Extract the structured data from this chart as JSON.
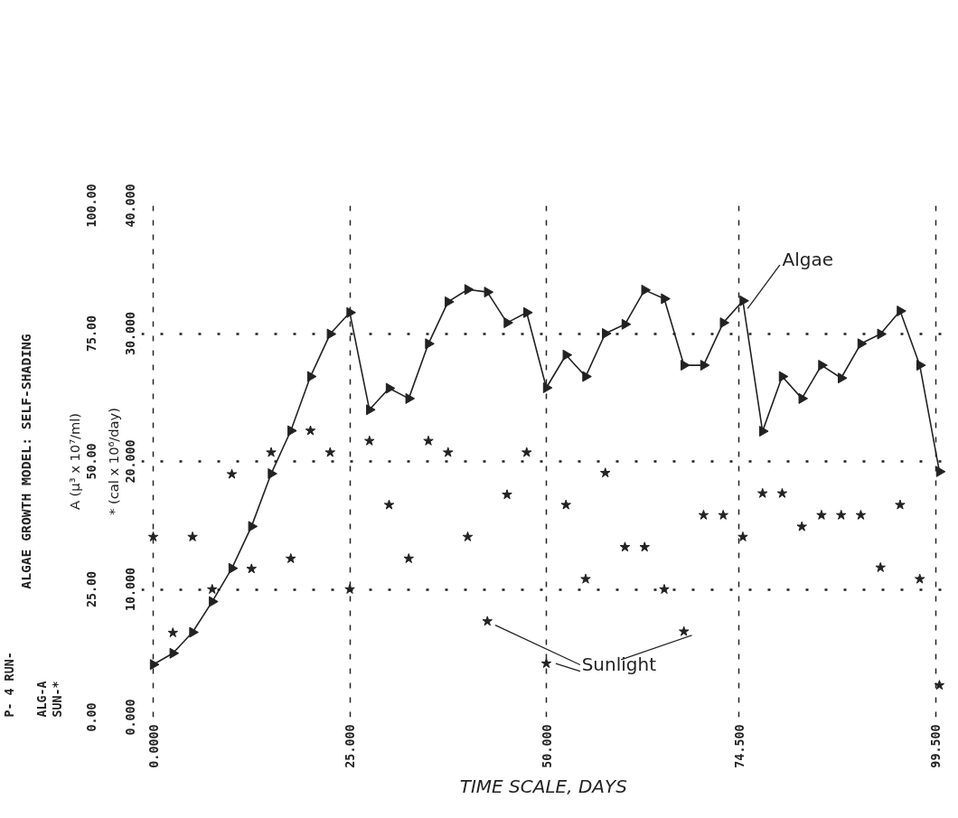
{
  "chart_data": {
    "type": "line",
    "title": "ALGAE GROWTH MODEL: SELF-SHADING",
    "xlabel": "TIME  SCALE, DAYS",
    "ylabel": "A (μ³ x 10⁷/ml)",
    "y2label": "* (cal x 10⁶/day)",
    "annotations": [
      "P- 4 RUN-",
      "ALG-A",
      "SUN-*"
    ],
    "x": [
      0,
      2.5,
      5,
      7.5,
      10,
      12.5,
      15,
      17.5,
      20,
      22.5,
      25,
      27.5,
      30,
      32.5,
      35,
      37.5,
      40,
      42.5,
      45,
      47.5,
      50,
      52.5,
      55,
      57.5,
      60,
      62.5,
      65,
      67.5,
      70,
      72.5,
      75,
      77.5,
      80,
      82.5,
      85,
      87.5,
      90,
      92.5,
      95,
      97.5,
      100
    ],
    "series": [
      {
        "name": "Algae",
        "marker": "triangle",
        "color": "#222222",
        "values": [
          10.3,
          12.5,
          16.6,
          22.6,
          29.1,
          37.3,
          47.6,
          56.0,
          66.6,
          74.9,
          79.1,
          60.1,
          64.3,
          62.3,
          73.0,
          81.2,
          83.6,
          83.1,
          77.1,
          79.1,
          64.4,
          70.8,
          66.6,
          75.0,
          76.8,
          83.5,
          81.8,
          68.8,
          68.8,
          77.1,
          81.4,
          55.9,
          66.6,
          62.3,
          68.8,
          66.3,
          73.0,
          74.9,
          79.4,
          68.8,
          48.0
        ]
      },
      {
        "name": "Sunlight",
        "type": "scatter",
        "marker": "star",
        "axis": "y2",
        "color": "#222222",
        "values": [
          14.1,
          6.6,
          14.1,
          10.0,
          19.0,
          11.6,
          20.7,
          12.4,
          22.4,
          20.7,
          10.0,
          21.6,
          16.6,
          12.4,
          21.6,
          20.7,
          14.1,
          7.5,
          17.4,
          20.7,
          4.2,
          16.6,
          10.8,
          19.1,
          13.3,
          13.3,
          10.0,
          6.7,
          15.8,
          15.8,
          14.1,
          17.5,
          17.5,
          14.9,
          15.8,
          15.8,
          15.8,
          11.7,
          16.6,
          10.8,
          2.5
        ]
      }
    ],
    "xlim": [
      -1.5,
      101.5
    ],
    "xticks": [
      {
        "value": 0,
        "label": "0.0000"
      },
      {
        "value": 25,
        "label": "25.000"
      },
      {
        "value": 50,
        "label": "50.000"
      },
      {
        "value": 74.5,
        "label": "74.500"
      },
      {
        "value": 99.5,
        "label": "99.500"
      }
    ],
    "ylim": [
      0,
      100
    ],
    "yticks": [
      {
        "value": 0,
        "label": "0.00"
      },
      {
        "value": 25,
        "label": "25.00"
      },
      {
        "value": 50,
        "label": "50.00"
      },
      {
        "value": 75,
        "label": "75.00"
      },
      {
        "value": 100,
        "label": "100.00"
      }
    ],
    "y2lim": [
      0,
      40
    ],
    "y2ticks": [
      {
        "value": 0,
        "label": "0.000"
      },
      {
        "value": 10,
        "label": "10.000"
      },
      {
        "value": 20,
        "label": "20.000"
      },
      {
        "value": 30,
        "label": "30.000"
      },
      {
        "value": 40,
        "label": "40.000"
      }
    ],
    "grid": true
  }
}
